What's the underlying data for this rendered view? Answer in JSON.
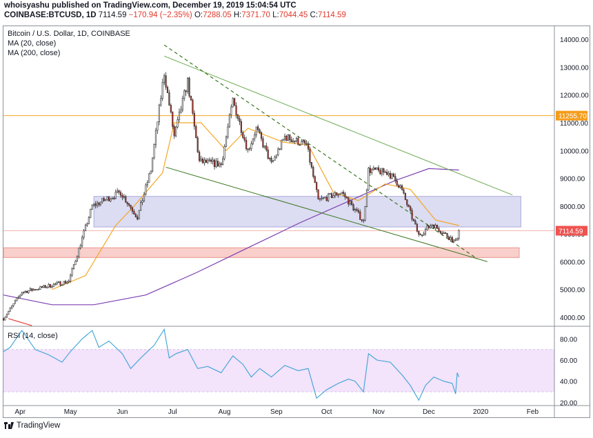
{
  "header": {
    "published": "whoisyashu published on TradingView.com, December 19, 2019 15:04:54 UTC",
    "symbol": "COINBASE:BTCUSD, 1D",
    "last": "7114.59",
    "change": "−170.94 (−2.35%)",
    "o_label": "O:",
    "o_value": "7288.05",
    "h_label": "H:",
    "h_value": "7371.70",
    "l_label": "L:",
    "l_value": "7044.45",
    "c_label": "C:",
    "c_value": "7114.59"
  },
  "legend": {
    "title": "Bitcoin / U.S. Dollar, 1D, COINBASE",
    "ma20": "MA (20, close)",
    "ma200": "MA (200, close)"
  },
  "colors": {
    "up": "#ffffff",
    "down": "#c0392b",
    "wick": "#2b2b2b",
    "ma20": "#f5a623",
    "ma200": "#7b3fb0",
    "channel": "#6aa84f",
    "dashed_trend": "#38761d",
    "resistance": "#f5a623",
    "zone_blue": "#d7d7f0",
    "zone_red": "#f8c7c2",
    "rsi": "#3aa3d4",
    "rsi_band": "#f3e3fb",
    "price_tag": "#ef5350",
    "level_tag": "#f59c1a"
  },
  "chart_data": [
    {
      "type": "candlestick",
      "title": "Bitcoin / U.S. Dollar, 1D, COINBASE",
      "x_ticks": [
        "Apr",
        "May",
        "Jun",
        "Jul",
        "Aug",
        "Sep",
        "Oct",
        "Nov",
        "Dec",
        "2020",
        "Feb"
      ],
      "y_ticks": [
        "14000.00",
        "13000.00",
        "12000.00",
        "11000.00",
        "10000.00",
        "9000.00",
        "8000.00",
        "7000.00",
        "6000.00",
        "5000.00",
        "4000.00"
      ],
      "ylim": [
        3750,
        14500
      ],
      "xlim": [
        "2019-03-22",
        "2020-02-14"
      ],
      "key_points": [
        {
          "date": "2019-03-22",
          "price": 3950
        },
        {
          "date": "2019-04-02",
          "price": 4900
        },
        {
          "date": "2019-04-30",
          "price": 5300
        },
        {
          "date": "2019-05-14",
          "price": 8000
        },
        {
          "date": "2019-05-31",
          "price": 8500
        },
        {
          "date": "2019-06-10",
          "price": 7600
        },
        {
          "date": "2019-06-18",
          "price": 9300
        },
        {
          "date": "2019-06-26",
          "price": 12800
        },
        {
          "date": "2019-07-02",
          "price": 10500
        },
        {
          "date": "2019-07-10",
          "price": 12500
        },
        {
          "date": "2019-07-17",
          "price": 9600
        },
        {
          "date": "2019-07-30",
          "price": 9500
        },
        {
          "date": "2019-08-06",
          "price": 11800
        },
        {
          "date": "2019-08-15",
          "price": 10000
        },
        {
          "date": "2019-08-20",
          "price": 10800
        },
        {
          "date": "2019-08-29",
          "price": 9500
        },
        {
          "date": "2019-09-06",
          "price": 10500
        },
        {
          "date": "2019-09-19",
          "price": 10200
        },
        {
          "date": "2019-09-26",
          "price": 8200
        },
        {
          "date": "2019-10-10",
          "price": 8500
        },
        {
          "date": "2019-10-23",
          "price": 7450
        },
        {
          "date": "2019-10-26",
          "price": 9300
        },
        {
          "date": "2019-11-07",
          "price": 9200
        },
        {
          "date": "2019-11-14",
          "price": 8700
        },
        {
          "date": "2019-11-25",
          "price": 6950
        },
        {
          "date": "2019-12-03",
          "price": 7350
        },
        {
          "date": "2019-12-17",
          "price": 6700
        },
        {
          "date": "2019-12-19",
          "price": 7114.59
        }
      ],
      "ma20": [
        {
          "date": "2019-04-20",
          "price": 5000
        },
        {
          "date": "2019-05-10",
          "price": 5500
        },
        {
          "date": "2019-05-28",
          "price": 7300
        },
        {
          "date": "2019-06-08",
          "price": 8000
        },
        {
          "date": "2019-06-25",
          "price": 9200
        },
        {
          "date": "2019-07-02",
          "price": 11000
        },
        {
          "date": "2019-07-18",
          "price": 11000
        },
        {
          "date": "2019-08-02",
          "price": 10000
        },
        {
          "date": "2019-08-15",
          "price": 10800
        },
        {
          "date": "2019-09-05",
          "price": 10300
        },
        {
          "date": "2019-09-20",
          "price": 10200
        },
        {
          "date": "2019-10-05",
          "price": 8500
        },
        {
          "date": "2019-10-20",
          "price": 8200
        },
        {
          "date": "2019-11-05",
          "price": 8800
        },
        {
          "date": "2019-11-20",
          "price": 8600
        },
        {
          "date": "2019-12-05",
          "price": 7500
        },
        {
          "date": "2019-12-19",
          "price": 7300
        }
      ],
      "ma200": [
        {
          "date": "2019-03-22",
          "price": 4800
        },
        {
          "date": "2019-04-20",
          "price": 4450
        },
        {
          "date": "2019-05-15",
          "price": 4450
        },
        {
          "date": "2019-06-15",
          "price": 4800
        },
        {
          "date": "2019-07-15",
          "price": 5600
        },
        {
          "date": "2019-08-15",
          "price": 6500
        },
        {
          "date": "2019-09-15",
          "price": 7400
        },
        {
          "date": "2019-10-15",
          "price": 8200
        },
        {
          "date": "2019-11-10",
          "price": 8900
        },
        {
          "date": "2019-12-01",
          "price": 9350
        },
        {
          "date": "2019-12-19",
          "price": 9300
        }
      ],
      "trendlines": {
        "channel_upper": [
          {
            "date": "2019-06-26",
            "price": 13400
          },
          {
            "date": "2020-01-20",
            "price": 8400
          }
        ],
        "channel_lower": [
          {
            "date": "2019-06-27",
            "price": 9400
          },
          {
            "date": "2020-01-05",
            "price": 6000
          }
        ],
        "dashed_down": [
          {
            "date": "2019-06-26",
            "price": 13800
          },
          {
            "date": "2019-12-30",
            "price": 6100
          }
        ],
        "red_line": [
          {
            "date": "2019-03-25",
            "price": 3950
          },
          {
            "date": "2019-04-08",
            "price": 3700
          }
        ]
      },
      "zones": [
        {
          "name": "blue",
          "from": "2019-05-15",
          "to": "2020-01-25",
          "low": 7250,
          "high": 8350
        },
        {
          "name": "red",
          "from": "2019-03-22",
          "to": "2020-01-24",
          "low": 6150,
          "high": 6500
        }
      ],
      "levels": [
        {
          "price": 11255.7,
          "label": "11255.70"
        },
        {
          "price": 7114.59,
          "label": "7114.59"
        }
      ]
    },
    {
      "type": "line",
      "title": "RSI (14, close)",
      "y_ticks": [
        "80.00",
        "60.00",
        "40.00",
        "20.00"
      ],
      "ylim": [
        17,
        90
      ],
      "band": [
        30,
        70
      ],
      "points": [
        {
          "date": "2019-03-22",
          "value": 68
        },
        {
          "date": "2019-03-26",
          "value": 72
        },
        {
          "date": "2019-04-02",
          "value": 88
        },
        {
          "date": "2019-04-10",
          "value": 70
        },
        {
          "date": "2019-04-18",
          "value": 65
        },
        {
          "date": "2019-04-26",
          "value": 58
        },
        {
          "date": "2019-05-01",
          "value": 68
        },
        {
          "date": "2019-05-08",
          "value": 80
        },
        {
          "date": "2019-05-14",
          "value": 88
        },
        {
          "date": "2019-05-18",
          "value": 72
        },
        {
          "date": "2019-05-24",
          "value": 78
        },
        {
          "date": "2019-06-01",
          "value": 66
        },
        {
          "date": "2019-06-06",
          "value": 52
        },
        {
          "date": "2019-06-12",
          "value": 62
        },
        {
          "date": "2019-06-20",
          "value": 74
        },
        {
          "date": "2019-06-26",
          "value": 89
        },
        {
          "date": "2019-06-29",
          "value": 62
        },
        {
          "date": "2019-07-03",
          "value": 66
        },
        {
          "date": "2019-07-10",
          "value": 70
        },
        {
          "date": "2019-07-16",
          "value": 52
        },
        {
          "date": "2019-07-22",
          "value": 54
        },
        {
          "date": "2019-07-30",
          "value": 48
        },
        {
          "date": "2019-08-06",
          "value": 64
        },
        {
          "date": "2019-08-12",
          "value": 56
        },
        {
          "date": "2019-08-17",
          "value": 44
        },
        {
          "date": "2019-08-22",
          "value": 52
        },
        {
          "date": "2019-08-29",
          "value": 44
        },
        {
          "date": "2019-09-06",
          "value": 55
        },
        {
          "date": "2019-09-14",
          "value": 50
        },
        {
          "date": "2019-09-20",
          "value": 52
        },
        {
          "date": "2019-09-25",
          "value": 24
        },
        {
          "date": "2019-10-01",
          "value": 32
        },
        {
          "date": "2019-10-08",
          "value": 38
        },
        {
          "date": "2019-10-14",
          "value": 42
        },
        {
          "date": "2019-10-18",
          "value": 40
        },
        {
          "date": "2019-10-23",
          "value": 30
        },
        {
          "date": "2019-10-26",
          "value": 66
        },
        {
          "date": "2019-10-31",
          "value": 60
        },
        {
          "date": "2019-11-08",
          "value": 58
        },
        {
          "date": "2019-11-15",
          "value": 46
        },
        {
          "date": "2019-11-20",
          "value": 36
        },
        {
          "date": "2019-11-25",
          "value": 22
        },
        {
          "date": "2019-11-29",
          "value": 36
        },
        {
          "date": "2019-12-04",
          "value": 44
        },
        {
          "date": "2019-12-10",
          "value": 40
        },
        {
          "date": "2019-12-15",
          "value": 38
        },
        {
          "date": "2019-12-17",
          "value": 28
        },
        {
          "date": "2019-12-18",
          "value": 48
        },
        {
          "date": "2019-12-19",
          "value": 44
        }
      ]
    }
  ],
  "footer": {
    "brand": "TradingView"
  }
}
